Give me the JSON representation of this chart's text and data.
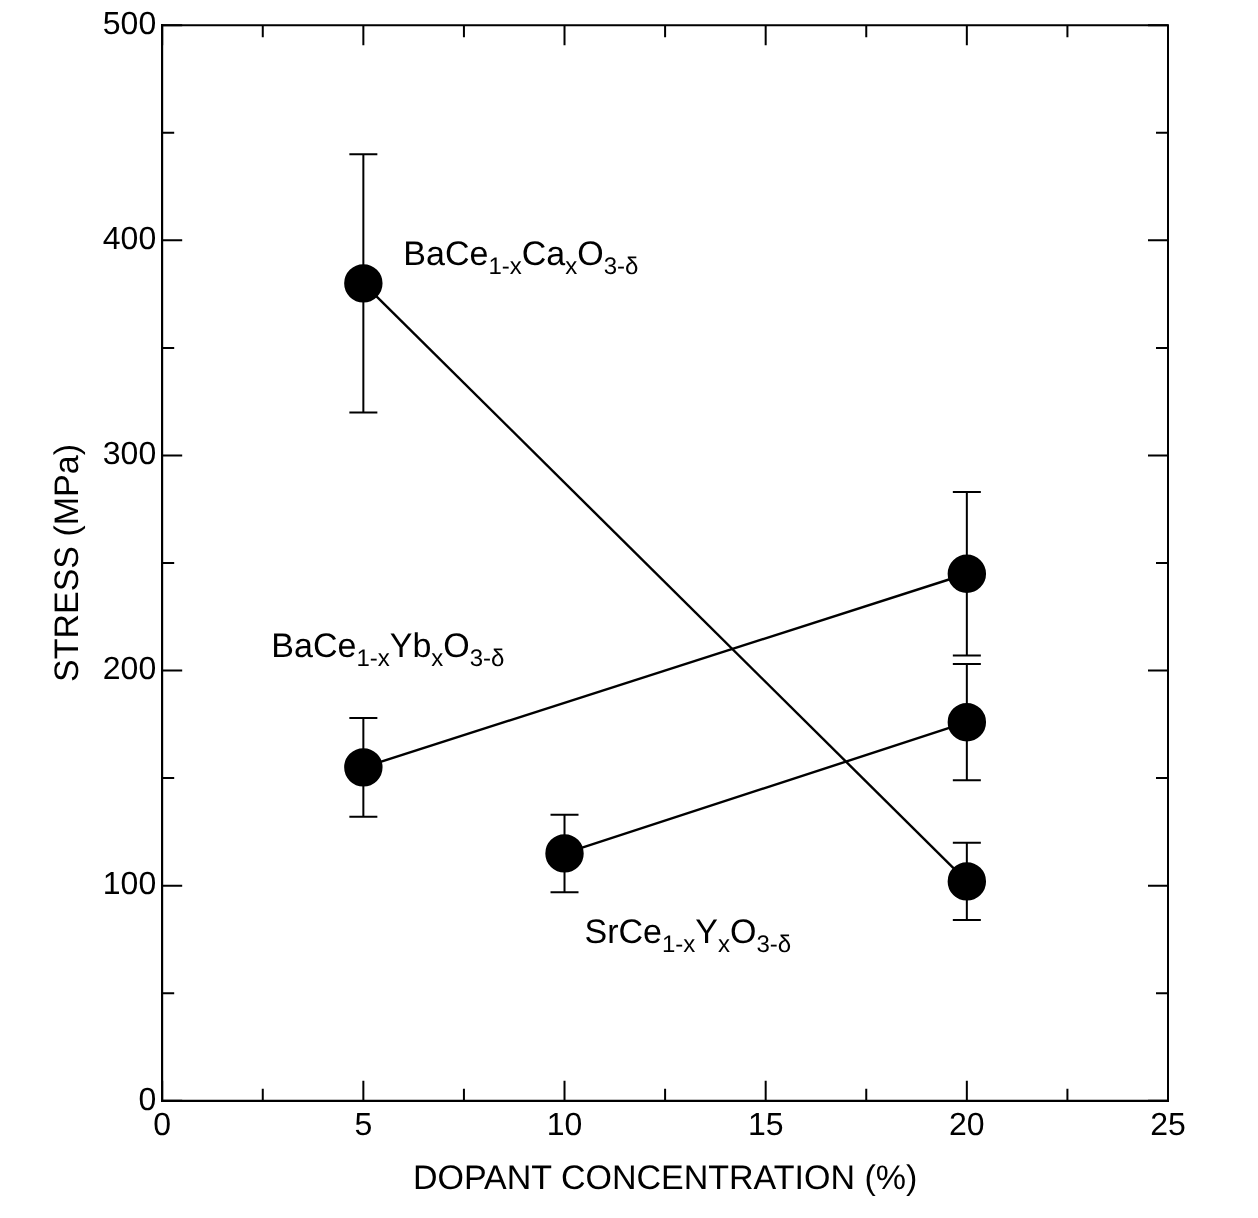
{
  "chart_data": {
    "type": "line",
    "xlabel": "DOPANT CONCENTRATION (%)",
    "ylabel": "STRESS (MPa)",
    "xlim": [
      0,
      25
    ],
    "ylim": [
      0,
      500
    ],
    "xticks": [
      0,
      {
        "value": 2.5,
        "label": null
      },
      5,
      {
        "value": 7.5,
        "label": null
      },
      10,
      {
        "value": 12.5,
        "label": null
      },
      15,
      {
        "value": 17.5,
        "label": null
      },
      20,
      {
        "value": 22.5,
        "label": null
      },
      25
    ],
    "yticks": [
      0,
      {
        "value": 50,
        "label": null
      },
      100,
      {
        "value": 150,
        "label": null
      },
      200,
      {
        "value": 250,
        "label": null
      },
      300,
      {
        "value": 350,
        "label": null
      },
      400,
      {
        "value": 450,
        "label": null
      },
      500
    ],
    "grid": false,
    "legend": false,
    "marker": "circle",
    "line_style": "solid",
    "series": [
      {
        "name": "BaCe$_{1-x}$Ca$_{x}$O$_{3-δ}$",
        "color": "#000000",
        "x": [
          5,
          20
        ],
        "values": [
          380,
          102
        ],
        "errors": [
          60,
          18
        ]
      },
      {
        "name": "BaCe$_{1-x}$Yb$_{x}$O$_{3-δ}$",
        "color": "#000000",
        "x": [
          5,
          20
        ],
        "values": [
          155,
          245
        ],
        "errors": [
          23,
          38
        ]
      },
      {
        "name": "SrCe$_{1-x}$Y$_{x}$O$_{3-δ}$",
        "color": "#000000",
        "x": [
          10,
          20
        ],
        "values": [
          115,
          176
        ],
        "errors": [
          18,
          27
        ]
      }
    ]
  }
}
